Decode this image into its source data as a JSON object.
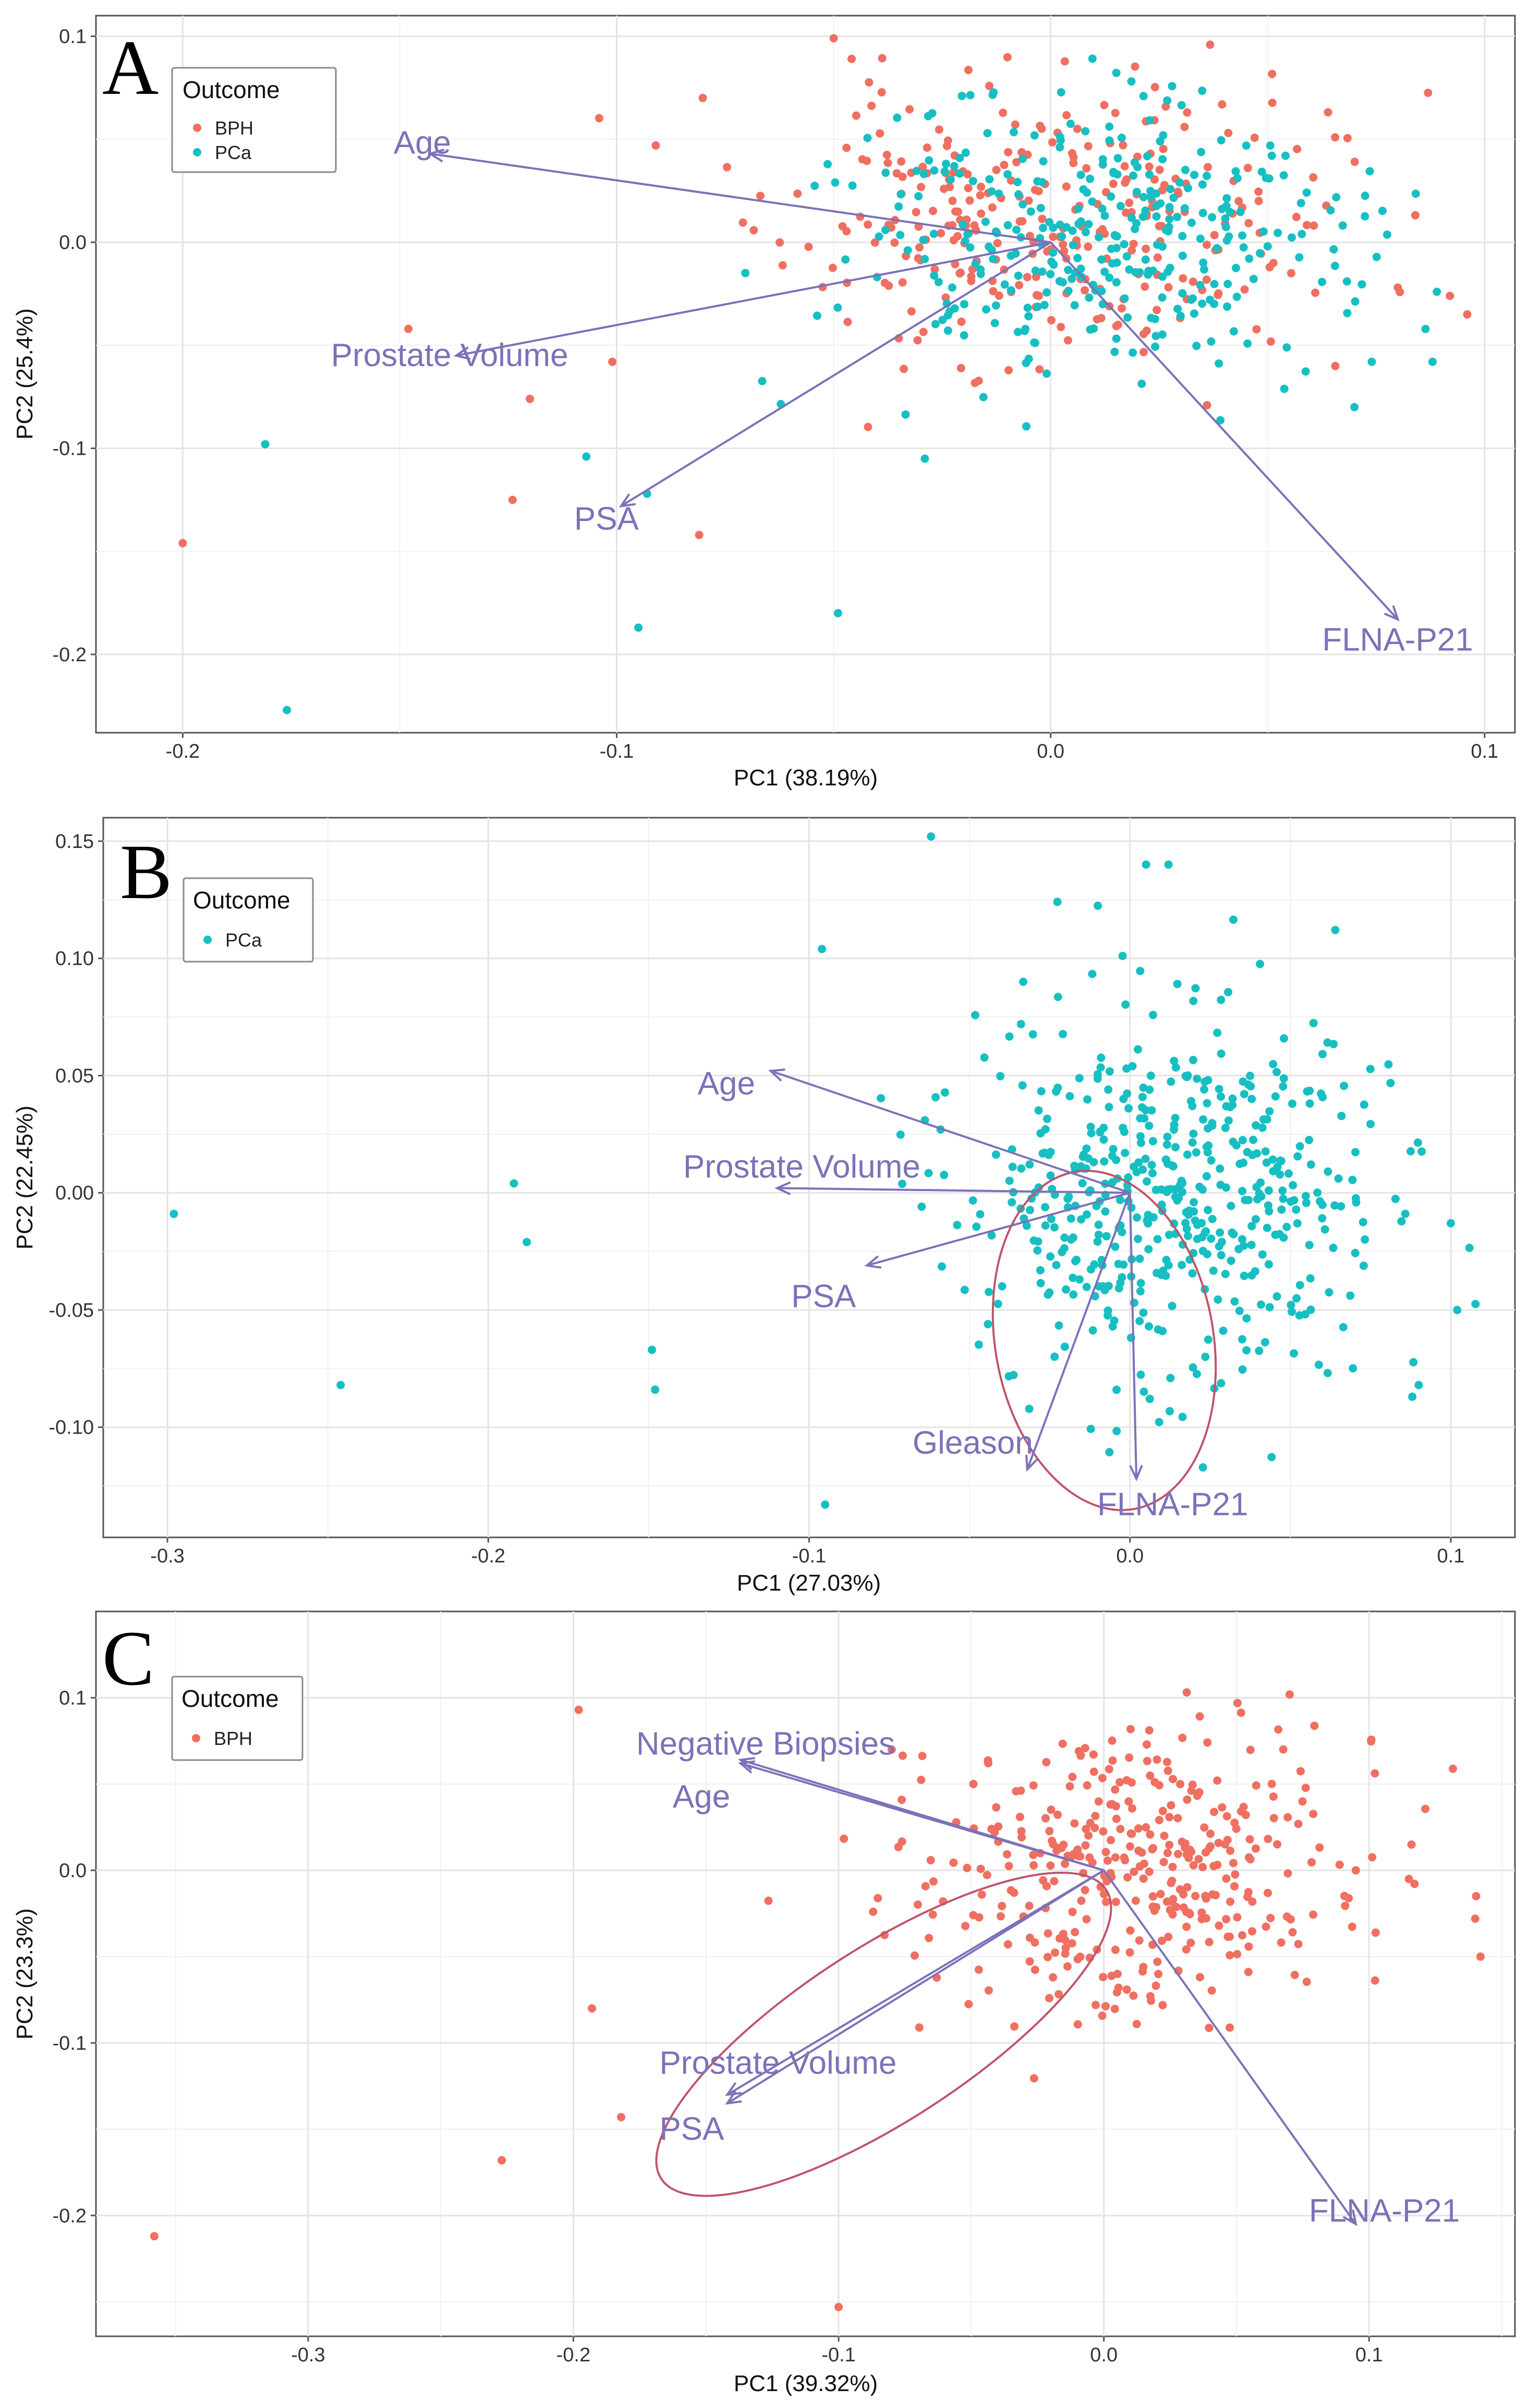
{
  "figure": {
    "colors": {
      "BPH": "#ef6f61",
      "PCa": "#17bfc2",
      "loading": "#7b72b8",
      "ellipse": "#c0546a"
    },
    "legend_title": "Outcome"
  },
  "chart_data": [
    {
      "id": "A",
      "type": "scatter",
      "panel_letter": "A",
      "xlabel": "PC1 (38.19%)",
      "ylabel": "PC2 (25.4%)",
      "xlim": [
        -0.22,
        0.107
      ],
      "ylim": [
        -0.238,
        0.11
      ],
      "xticks": [
        -0.2,
        -0.1,
        0.0,
        0.1
      ],
      "xtick_labels": [
        "-0.2",
        "-0.1",
        "0.0",
        "0.1"
      ],
      "yticks": [
        -0.2,
        -0.1,
        0.0,
        0.1
      ],
      "ytick_labels": [
        "-0.2",
        "-0.1",
        "0.0",
        "0.1"
      ],
      "legend": [
        "BPH",
        "PCa"
      ],
      "loadings": [
        {
          "label": "Age",
          "x": -0.143,
          "y": 0.043
        },
        {
          "label": "Prostate Volume",
          "x": -0.137,
          "y": -0.055
        },
        {
          "label": "PSA",
          "x": -0.099,
          "y": -0.128
        },
        {
          "label": "FLNA-P21",
          "x": 0.08,
          "y": -0.183
        }
      ],
      "series": [
        {
          "name": "BPH",
          "spread": [
            0.03,
            0.035
          ],
          "center": [
            0.0,
            0.01
          ],
          "n": 300,
          "seed": 11,
          "outliers": [
            [
              -0.2,
              -0.146
            ],
            [
              -0.148,
              -0.042
            ],
            [
              -0.124,
              -0.125
            ],
            [
              -0.12,
              -0.076
            ],
            [
              -0.101,
              -0.058
            ],
            [
              -0.081,
              -0.142
            ],
            [
              -0.05,
              0.099
            ],
            [
              -0.091,
              0.047
            ],
            [
              0.096,
              -0.035
            ],
            [
              0.092,
              -0.026
            ],
            [
              0.08,
              -0.022
            ]
          ]
        },
        {
          "name": "PCa",
          "spread": [
            0.028,
            0.035
          ],
          "center": [
            0.01,
            0.0
          ],
          "n": 340,
          "seed": 23,
          "outliers": [
            [
              -0.181,
              -0.098
            ],
            [
              -0.176,
              -0.227
            ],
            [
              -0.107,
              -0.104
            ],
            [
              -0.095,
              -0.187
            ],
            [
              -0.093,
              -0.122
            ],
            [
              -0.049,
              -0.18
            ],
            [
              -0.029,
              -0.105
            ],
            [
              0.07,
              -0.08
            ],
            [
              0.074,
              -0.058
            ],
            [
              0.088,
              -0.058
            ],
            [
              0.089,
              -0.024
            ]
          ]
        }
      ]
    },
    {
      "id": "B",
      "type": "scatter",
      "panel_letter": "B",
      "xlabel": "PC1 (27.03%)",
      "ylabel": "PC2 (22.45%)",
      "xlim": [
        -0.32,
        0.12
      ],
      "ylim": [
        -0.147,
        0.16
      ],
      "xticks": [
        -0.3,
        -0.2,
        -0.1,
        0.0,
        0.1
      ],
      "xtick_labels": [
        "-0.3",
        "-0.2",
        "-0.1",
        "0.0",
        "0.1"
      ],
      "yticks": [
        -0.1,
        -0.05,
        0.0,
        0.05,
        0.1,
        0.15
      ],
      "ytick_labels": [
        "-0.10",
        "-0.05",
        "0.00",
        "0.05",
        "0.10",
        "0.15"
      ],
      "legend": [
        "PCa"
      ],
      "loadings": [
        {
          "label": "Age",
          "x": -0.112,
          "y": 0.052
        },
        {
          "label": "Prostate Volume",
          "x": -0.11,
          "y": 0.002
        },
        {
          "label": "PSA",
          "x": -0.082,
          "y": -0.031
        },
        {
          "label": "Gleason",
          "x": -0.032,
          "y": -0.118
        },
        {
          "label": "FLNA-P21",
          "x": 0.002,
          "y": -0.122
        }
      ],
      "ellipse": {
        "cx": -0.008,
        "cy": -0.063,
        "rx": 0.034,
        "ry": 0.073,
        "angle_deg": 10
      },
      "series": [
        {
          "name": "PCa",
          "spread": [
            0.032,
            0.04
          ],
          "center": [
            0.015,
            0.0
          ],
          "n": 520,
          "seed": 37,
          "outliers": [
            [
              -0.298,
              -0.009
            ],
            [
              -0.246,
              -0.082
            ],
            [
              -0.192,
              0.004
            ],
            [
              -0.188,
              -0.021
            ],
            [
              -0.149,
              -0.067
            ],
            [
              -0.148,
              -0.084
            ],
            [
              -0.096,
              0.104
            ],
            [
              -0.095,
              -0.133
            ],
            [
              -0.062,
              0.152
            ],
            [
              0.005,
              0.14
            ],
            [
              0.012,
              0.14
            ],
            [
              0.1,
              -0.013
            ],
            [
              0.102,
              -0.05
            ],
            [
              0.09,
              -0.082
            ],
            [
              0.088,
              -0.087
            ]
          ]
        }
      ]
    },
    {
      "id": "C",
      "type": "scatter",
      "panel_letter": "C",
      "xlabel": "PC1 (39.32%)",
      "ylabel": "PC2 (23.3%)",
      "xlim": [
        -0.38,
        0.155
      ],
      "ylim": [
        -0.27,
        0.15
      ],
      "xticks": [
        -0.3,
        -0.2,
        -0.1,
        0.0,
        0.1
      ],
      "xtick_labels": [
        "-0.3",
        "-0.2",
        "-0.1",
        "0.0",
        "0.1"
      ],
      "yticks": [
        -0.2,
        -0.1,
        0.0,
        0.1
      ],
      "ytick_labels": [
        "-0.2",
        "-0.1",
        "0.0",
        "0.1"
      ],
      "legend": [
        "BPH"
      ],
      "loadings": [
        {
          "label": "Negative Biopsies",
          "x": -0.137,
          "y": 0.064
        },
        {
          "label": "Age",
          "x": -0.137,
          "y": 0.062
        },
        {
          "label": "Prostate Volume",
          "x": -0.142,
          "y": -0.13
        },
        {
          "label": "PSA",
          "x": -0.142,
          "y": -0.135
        },
        {
          "label": "FLNA-P21",
          "x": 0.095,
          "y": -0.205
        }
      ],
      "ellipse": {
        "cx": -0.083,
        "cy": -0.095,
        "rx": 0.1,
        "ry": 0.05,
        "angle_deg": 33
      },
      "series": [
        {
          "name": "BPH",
          "spread": [
            0.04,
            0.042
          ],
          "center": [
            0.01,
            0.0
          ],
          "n": 380,
          "seed": 53,
          "outliers": [
            [
              -0.358,
              -0.212
            ],
            [
              -0.227,
              -0.168
            ],
            [
              -0.198,
              0.093
            ],
            [
              -0.193,
              -0.08
            ],
            [
              -0.182,
              -0.143
            ],
            [
              -0.1,
              -0.253
            ],
            [
              -0.08,
              0.07
            ],
            [
              0.14,
              -0.028
            ],
            [
              0.142,
              -0.05
            ],
            [
              0.115,
              -0.005
            ],
            [
              0.095,
              0.0
            ]
          ]
        }
      ]
    }
  ]
}
